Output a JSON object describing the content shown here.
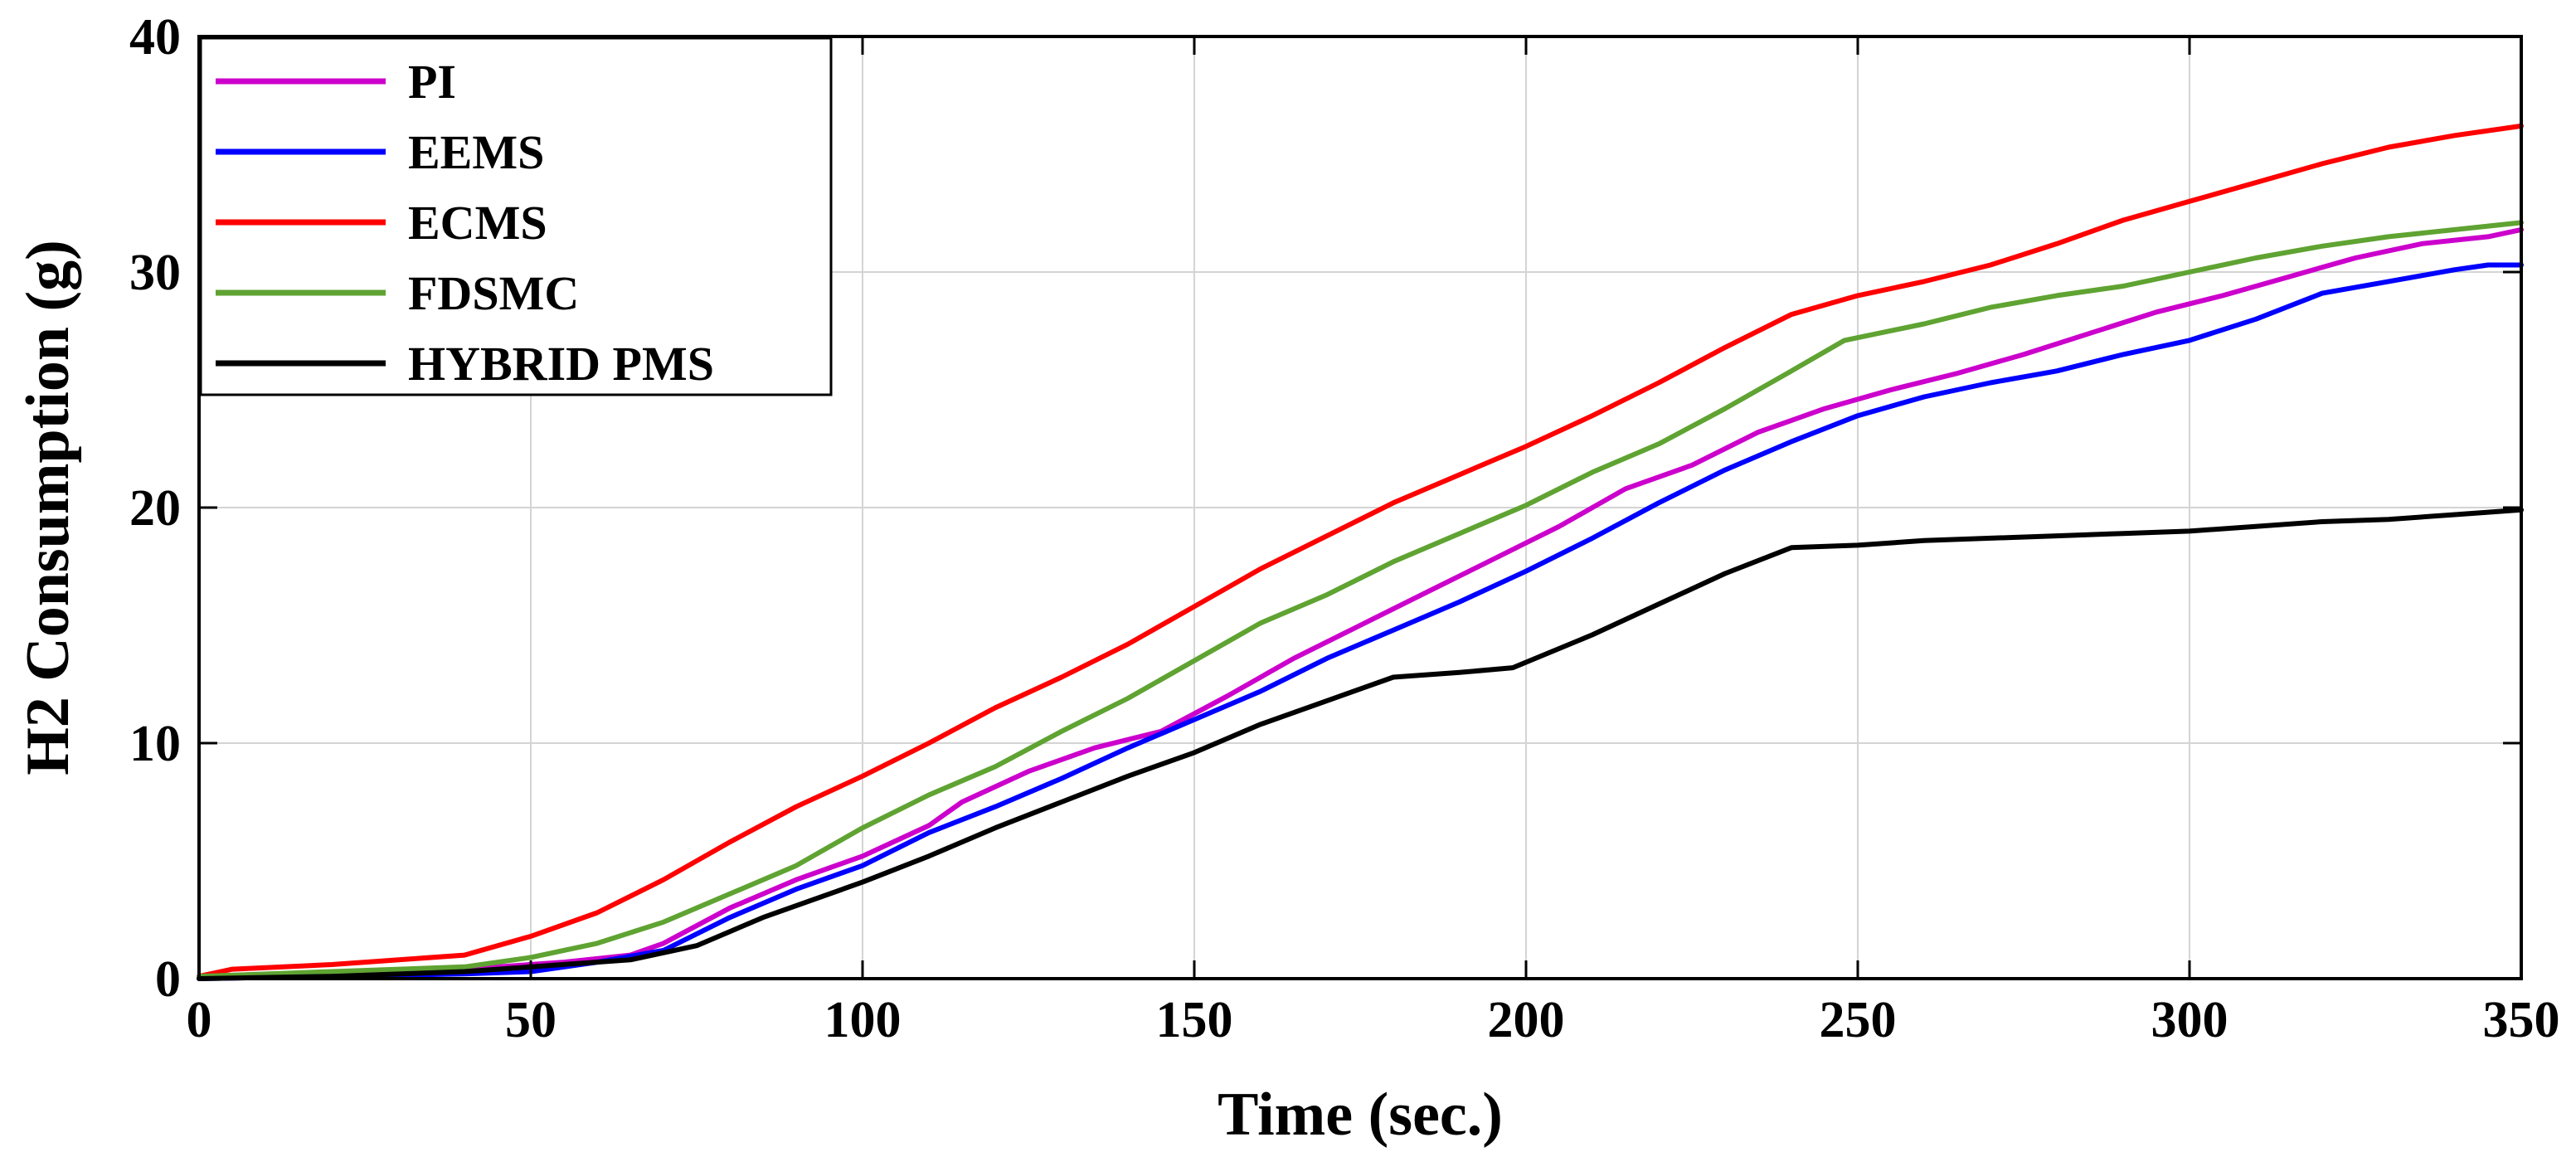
{
  "chart_data": {
    "type": "line",
    "title": "",
    "xlabel": "Time (sec.)",
    "ylabel": "H2 Consumption (g)",
    "xlim": [
      0,
      350
    ],
    "ylim": [
      0,
      40
    ],
    "xticks": [
      0,
      50,
      100,
      150,
      200,
      250,
      300,
      350
    ],
    "yticks": [
      0,
      10,
      20,
      30,
      40
    ],
    "grid": true,
    "legend_position": "top-left",
    "series": [
      {
        "name": "PI",
        "color": "#CC00CC",
        "x": [
          0,
          20,
          40,
          55,
          65,
          70,
          80,
          90,
          100,
          110,
          115,
          125,
          135,
          145,
          155,
          165,
          175,
          185,
          195,
          205,
          215,
          225,
          235,
          245,
          255,
          265,
          275,
          285,
          295,
          305,
          315,
          325,
          335,
          345,
          350
        ],
        "y": [
          0.1,
          0.2,
          0.4,
          0.7,
          1.0,
          1.5,
          3.0,
          4.2,
          5.2,
          6.5,
          7.5,
          8.8,
          9.8,
          10.5,
          12.0,
          13.6,
          15.0,
          16.4,
          17.8,
          19.2,
          20.8,
          21.8,
          23.2,
          24.2,
          25.0,
          25.7,
          26.5,
          27.4,
          28.3,
          29.0,
          29.8,
          30.6,
          31.2,
          31.5,
          31.8
        ]
      },
      {
        "name": "EEMS",
        "color": "#0000FF",
        "x": [
          0,
          20,
          40,
          50,
          60,
          70,
          80,
          90,
          100,
          110,
          120,
          130,
          140,
          150,
          160,
          170,
          180,
          190,
          200,
          210,
          220,
          230,
          240,
          250,
          260,
          270,
          280,
          290,
          300,
          310,
          320,
          330,
          340,
          345,
          350
        ],
        "y": [
          0.0,
          0.1,
          0.2,
          0.3,
          0.7,
          1.2,
          2.6,
          3.8,
          4.8,
          6.2,
          7.3,
          8.5,
          9.8,
          11.0,
          12.2,
          13.6,
          14.8,
          16.0,
          17.3,
          18.7,
          20.2,
          21.6,
          22.8,
          23.9,
          24.7,
          25.3,
          25.8,
          26.5,
          27.1,
          28.0,
          29.1,
          29.6,
          30.1,
          30.3,
          30.3
        ]
      },
      {
        "name": "ECMS",
        "color": "#FF0000",
        "x": [
          0,
          5,
          20,
          40,
          50,
          60,
          70,
          80,
          90,
          100,
          110,
          120,
          130,
          140,
          150,
          160,
          170,
          180,
          190,
          200,
          210,
          220,
          230,
          240,
          250,
          260,
          270,
          280,
          290,
          300,
          310,
          320,
          330,
          340,
          350
        ],
        "y": [
          0.1,
          0.4,
          0.6,
          1.0,
          1.8,
          2.8,
          4.2,
          5.8,
          7.3,
          8.6,
          10.0,
          11.5,
          12.8,
          14.2,
          15.8,
          17.4,
          18.8,
          20.2,
          21.4,
          22.6,
          23.9,
          25.3,
          26.8,
          28.2,
          29.0,
          29.6,
          30.3,
          31.2,
          32.2,
          33.0,
          33.8,
          34.6,
          35.3,
          35.8,
          36.2
        ]
      },
      {
        "name": "FDSMC",
        "color": "#5FA332",
        "x": [
          0,
          20,
          40,
          50,
          60,
          70,
          80,
          90,
          100,
          110,
          120,
          130,
          140,
          150,
          160,
          170,
          180,
          190,
          200,
          210,
          220,
          230,
          240,
          248,
          260,
          270,
          280,
          290,
          300,
          310,
          320,
          330,
          340,
          350
        ],
        "y": [
          0.1,
          0.3,
          0.5,
          0.9,
          1.5,
          2.4,
          3.6,
          4.8,
          6.4,
          7.8,
          9.0,
          10.5,
          11.9,
          13.5,
          15.1,
          16.3,
          17.7,
          18.9,
          20.1,
          21.5,
          22.7,
          24.2,
          25.8,
          27.1,
          27.8,
          28.5,
          29.0,
          29.4,
          30.0,
          30.6,
          31.1,
          31.5,
          31.8,
          32.1
        ]
      },
      {
        "name": "HYBRID PMS",
        "color": "#000000",
        "x": [
          0,
          20,
          40,
          50,
          65,
          75,
          85,
          100,
          110,
          120,
          130,
          140,
          150,
          160,
          170,
          180,
          190,
          198,
          210,
          220,
          230,
          240,
          250,
          260,
          270,
          280,
          290,
          300,
          310,
          320,
          330,
          340,
          350
        ],
        "y": [
          0.0,
          0.1,
          0.3,
          0.5,
          0.8,
          1.4,
          2.6,
          4.1,
          5.2,
          6.4,
          7.5,
          8.6,
          9.6,
          10.8,
          11.8,
          12.8,
          13.0,
          13.2,
          14.6,
          15.9,
          17.2,
          18.3,
          18.4,
          18.6,
          18.7,
          18.8,
          18.9,
          19.0,
          19.2,
          19.4,
          19.5,
          19.7,
          19.9
        ]
      }
    ]
  }
}
